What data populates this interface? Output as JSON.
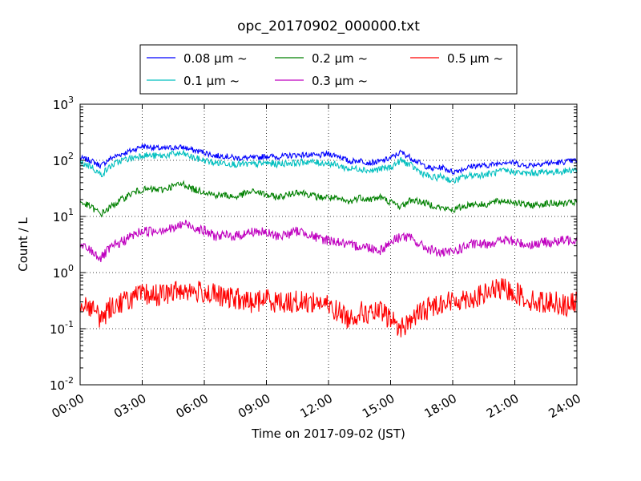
{
  "chart_data": {
    "type": "line",
    "title": "opc_20170902_000000.txt",
    "xlabel": "Time on 2017-09-02 (JST)",
    "ylabel": "Count / L",
    "yscale": "log",
    "xlim": [
      "2017-09-02 00:00",
      "2017-09-03 00:00"
    ],
    "ylim": [
      0.01,
      1000
    ],
    "grid": true,
    "legend_position": "top-center",
    "legend_columns": 3,
    "x_ticks": [
      "00:00",
      "03:00",
      "06:00",
      "09:00",
      "12:00",
      "15:00",
      "18:00",
      "21:00",
      "24:00"
    ],
    "y_ticks": [
      {
        "base": "10",
        "exp": "-2"
      },
      {
        "base": "10",
        "exp": "-1"
      },
      {
        "base": "10",
        "exp": "0"
      },
      {
        "base": "10",
        "exp": "1"
      },
      {
        "base": "10",
        "exp": "2"
      },
      {
        "base": "10",
        "exp": "3"
      }
    ],
    "x_time_hours": [
      0,
      0.5,
      1,
      1.5,
      2,
      2.5,
      3,
      3.5,
      4,
      4.5,
      5,
      5.5,
      6,
      6.5,
      7,
      7.5,
      8,
      8.5,
      9,
      9.5,
      10,
      10.5,
      11,
      11.5,
      12,
      12.5,
      13,
      13.5,
      14,
      14.5,
      15,
      15.5,
      16,
      16.5,
      17,
      17.5,
      18,
      18.5,
      19,
      19.5,
      20,
      20.5,
      21,
      21.5,
      22,
      22.5,
      23,
      23.5,
      24
    ],
    "series": [
      {
        "name": "0.08 μm ~",
        "color": "#0000ff",
        "values": [
          110,
          100,
          80,
          110,
          130,
          150,
          180,
          170,
          160,
          170,
          170,
          150,
          140,
          120,
          120,
          110,
          110,
          110,
          120,
          115,
          120,
          125,
          125,
          120,
          130,
          120,
          95,
          100,
          90,
          95,
          110,
          140,
          110,
          85,
          70,
          75,
          62,
          70,
          80,
          80,
          85,
          95,
          90,
          80,
          85,
          90,
          90,
          95,
          100
        ]
      },
      {
        "name": "0.1 μm ~",
        "color": "#00bfbf",
        "values": [
          90,
          80,
          55,
          80,
          100,
          110,
          125,
          120,
          120,
          130,
          130,
          110,
          100,
          90,
          90,
          85,
          85,
          85,
          90,
          85,
          90,
          90,
          95,
          90,
          90,
          80,
          70,
          72,
          65,
          70,
          75,
          100,
          80,
          60,
          48,
          52,
          42,
          50,
          55,
          55,
          60,
          65,
          62,
          58,
          60,
          62,
          62,
          65,
          70
        ]
      },
      {
        "name": "0.2 μm ~",
        "color": "#008000",
        "values": [
          18,
          15,
          11,
          15,
          20,
          26,
          30,
          30,
          30,
          35,
          38,
          30,
          28,
          24,
          24,
          22,
          26,
          28,
          24,
          22,
          24,
          28,
          25,
          22,
          22,
          20,
          18,
          22,
          20,
          22,
          18,
          15,
          20,
          18,
          16,
          14,
          13,
          15,
          17,
          16,
          18,
          19,
          18,
          16,
          16,
          17,
          17,
          17,
          18
        ]
      },
      {
        "name": "0.3 μm ~",
        "color": "#bf00bf",
        "values": [
          3.0,
          2.5,
          1.8,
          2.8,
          3.5,
          4.5,
          5.5,
          5.5,
          6,
          6,
          7.5,
          6.5,
          5.5,
          4.5,
          4.5,
          4.5,
          5,
          5.5,
          5,
          4.5,
          4.8,
          5.5,
          5,
          4,
          3.8,
          3.5,
          3,
          3,
          2.8,
          2.5,
          3.5,
          4.5,
          4,
          3,
          2.5,
          2.2,
          2.3,
          2.8,
          3.2,
          3.2,
          3.5,
          3.8,
          3.5,
          3.2,
          3.2,
          3.5,
          3.5,
          3.8,
          4
        ]
      },
      {
        "name": "0.5 μm ~",
        "color": "#ff0000",
        "values": [
          0.3,
          0.25,
          0.15,
          0.25,
          0.3,
          0.35,
          0.4,
          0.4,
          0.4,
          0.45,
          0.5,
          0.45,
          0.45,
          0.4,
          0.35,
          0.35,
          0.3,
          0.3,
          0.35,
          0.3,
          0.3,
          0.3,
          0.3,
          0.3,
          0.25,
          0.2,
          0.15,
          0.2,
          0.18,
          0.2,
          0.15,
          0.1,
          0.15,
          0.2,
          0.25,
          0.3,
          0.3,
          0.35,
          0.35,
          0.4,
          0.5,
          0.5,
          0.45,
          0.35,
          0.3,
          0.3,
          0.3,
          0.25,
          0.3
        ]
      }
    ]
  }
}
